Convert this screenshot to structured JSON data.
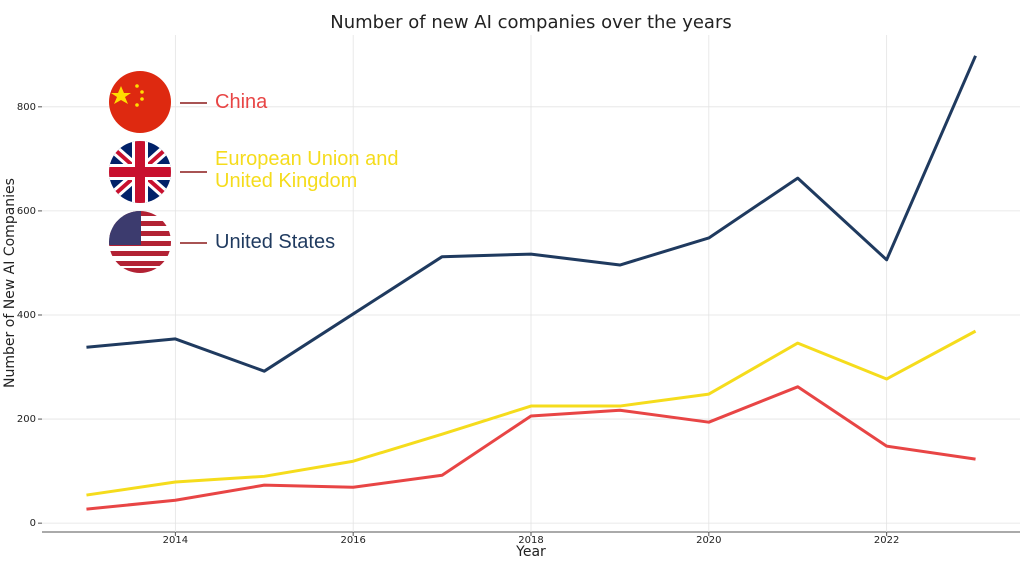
{
  "chart_data": {
    "type": "line",
    "title": "Number of new AI companies over the years",
    "xlabel": "Year",
    "ylabel": "Number of New AI Companies",
    "x": [
      2013,
      2014,
      2015,
      2016,
      2017,
      2018,
      2019,
      2020,
      2021,
      2022,
      2023
    ],
    "series": [
      {
        "name": "China",
        "color": "#e84545",
        "values": [
          27,
          44,
          73,
          69,
          92,
          206,
          217,
          194,
          262,
          148,
          123
        ]
      },
      {
        "name": "European Union and United Kingdom",
        "color": "#f5dc1c",
        "values": [
          54,
          79,
          90,
          119,
          171,
          225,
          225,
          248,
          346,
          277,
          369
        ]
      },
      {
        "name": "United States",
        "color": "#1f3a5f",
        "values": [
          338,
          354,
          292,
          402,
          512,
          517,
          496,
          548,
          663,
          506,
          898
        ]
      }
    ],
    "xlim": [
      2012.5,
      2023.5
    ],
    "xticks": [
      2014,
      2016,
      2018,
      2020,
      2022
    ],
    "ylim": [
      -17,
      938
    ],
    "yticks": [
      0,
      200,
      400,
      600,
      800
    ],
    "grid": true
  }
}
